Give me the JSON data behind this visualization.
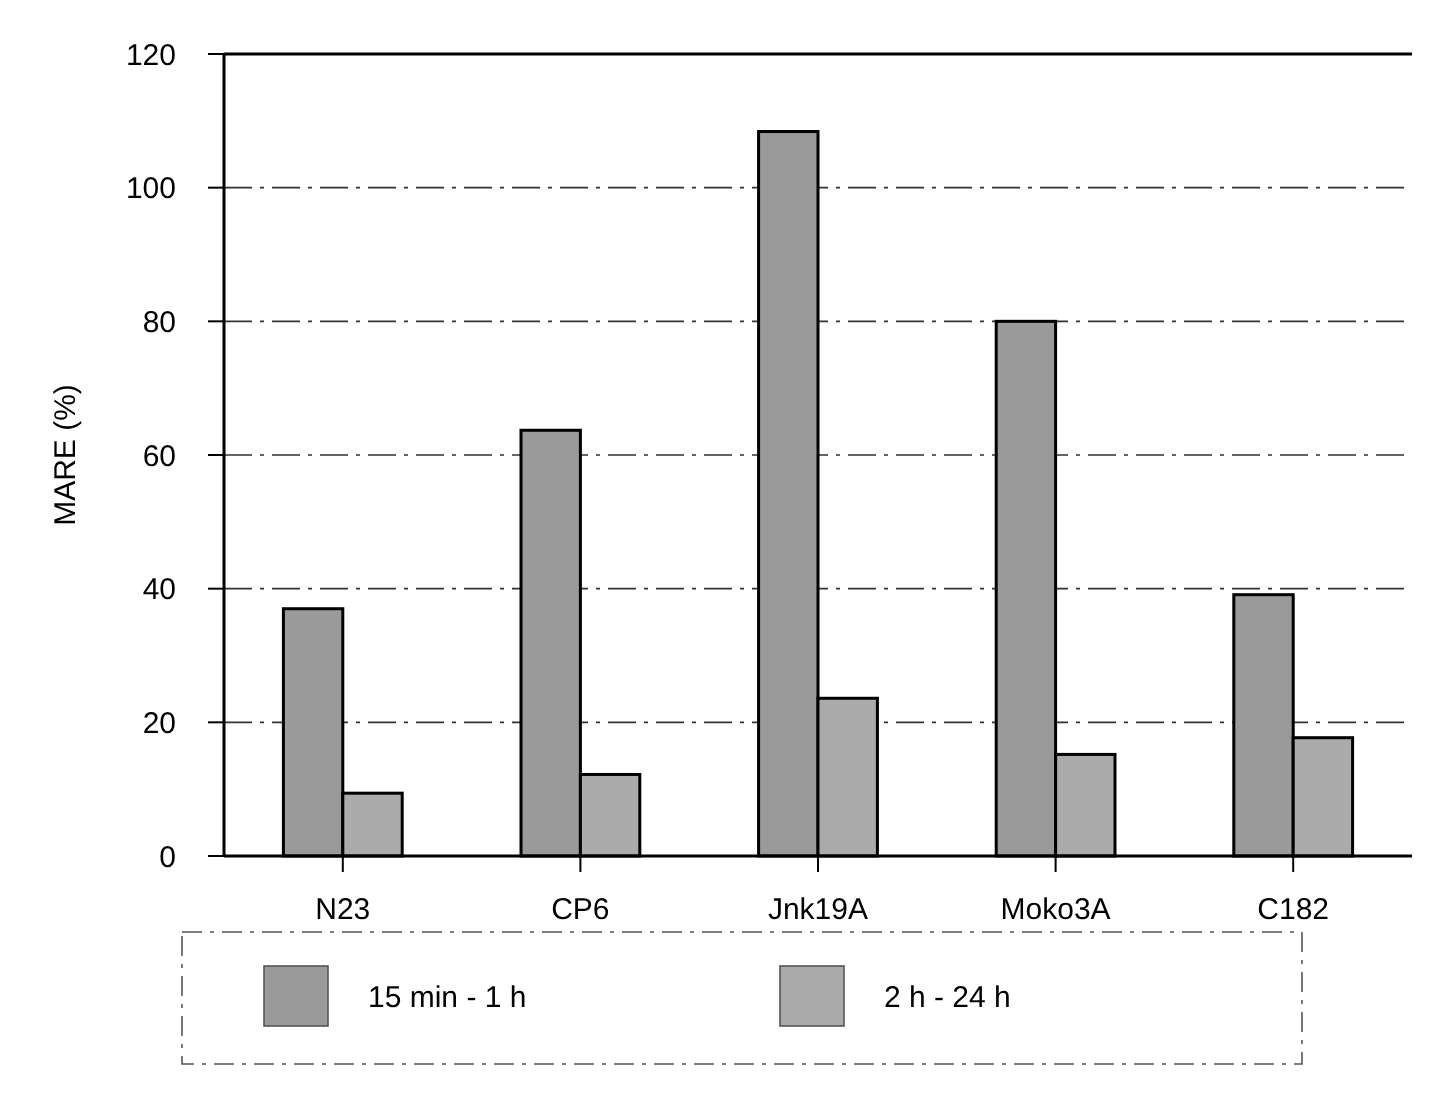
{
  "chart_data": {
    "type": "bar",
    "ylabel": "MARE (%)",
    "categories": [
      "N23",
      "CP6",
      "Jnk19A",
      "Moko3A",
      "C182"
    ],
    "series": [
      {
        "name": "15 min - 1 h",
        "color": "#9a9a9a",
        "values": [
          37,
          63.7,
          108.4,
          80,
          39.1
        ]
      },
      {
        "name": "2 h - 24 h",
        "color": "#ababab",
        "values": [
          9.4,
          12.2,
          23.6,
          15.2,
          17.7
        ]
      }
    ],
    "ylim": [
      0,
      120
    ],
    "yticks": [
      0,
      20,
      40,
      60,
      80,
      100,
      120
    ],
    "grid": "y",
    "legend": "bottom"
  }
}
